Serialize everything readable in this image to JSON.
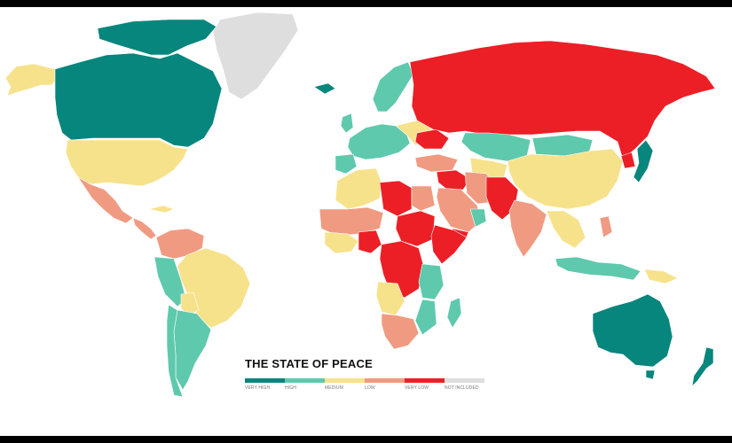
{
  "map": {
    "title": "THE STATE OF PEACE",
    "legend": [
      {
        "label": "VERY HIGH",
        "color": "#06867c"
      },
      {
        "label": "HIGH",
        "color": "#5ec9ad"
      },
      {
        "label": "MEDIUM",
        "color": "#f7e28c"
      },
      {
        "label": "LOW",
        "color": "#f09a82"
      },
      {
        "label": "VERY LOW",
        "color": "#ec1f26"
      },
      {
        "label": "NOT INCLUDED",
        "color": "#dedede"
      }
    ],
    "regions": [
      {
        "name": "Canada",
        "level": "VERY HIGH"
      },
      {
        "name": "Greenland",
        "level": "NOT INCLUDED"
      },
      {
        "name": "Alaska",
        "level": "MEDIUM"
      },
      {
        "name": "United States",
        "level": "MEDIUM"
      },
      {
        "name": "Mexico",
        "level": "LOW"
      },
      {
        "name": "Central America",
        "level": "LOW"
      },
      {
        "name": "Colombia / Venezuela",
        "level": "LOW"
      },
      {
        "name": "Brazil",
        "level": "MEDIUM"
      },
      {
        "name": "Peru / Chile",
        "level": "HIGH"
      },
      {
        "name": "Argentina",
        "level": "HIGH"
      },
      {
        "name": "Scandinavia",
        "level": "HIGH"
      },
      {
        "name": "Western Europe",
        "level": "HIGH"
      },
      {
        "name": "Ukraine",
        "level": "VERY LOW"
      },
      {
        "name": "Russia",
        "level": "VERY LOW"
      },
      {
        "name": "Kazakhstan",
        "level": "HIGH"
      },
      {
        "name": "China",
        "level": "MEDIUM"
      },
      {
        "name": "North Korea",
        "level": "VERY LOW"
      },
      {
        "name": "Japan",
        "level": "VERY HIGH"
      },
      {
        "name": "Middle East",
        "level": "LOW"
      },
      {
        "name": "Syria / Iraq",
        "level": "VERY LOW"
      },
      {
        "name": "Afghanistan / Pakistan",
        "level": "VERY LOW"
      },
      {
        "name": "India",
        "level": "LOW"
      },
      {
        "name": "Southeast Asia",
        "level": "MEDIUM"
      },
      {
        "name": "Indonesia",
        "level": "HIGH"
      },
      {
        "name": "Australia",
        "level": "VERY HIGH"
      },
      {
        "name": "New Zealand",
        "level": "VERY HIGH"
      },
      {
        "name": "North Africa",
        "level": "MEDIUM"
      },
      {
        "name": "Libya",
        "level": "VERY LOW"
      },
      {
        "name": "West Africa",
        "level": "LOW"
      },
      {
        "name": "Central Africa",
        "level": "VERY LOW"
      },
      {
        "name": "East Africa",
        "level": "HIGH"
      },
      {
        "name": "Southern Africa",
        "level": "LOW"
      },
      {
        "name": "Madagascar",
        "level": "HIGH"
      }
    ]
  }
}
